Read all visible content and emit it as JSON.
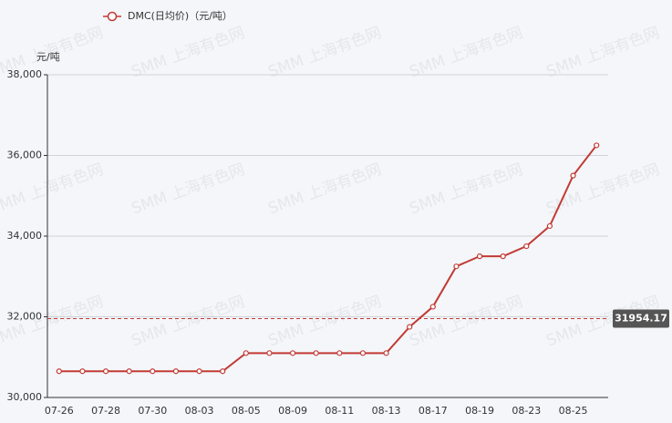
{
  "chart_data": {
    "type": "line",
    "legend_label": "DMC(日均价)（元/吨）",
    "y_axis_label": "元/吨",
    "watermark": "SMM 上海有色网",
    "categories": [
      "07-26",
      null,
      "07-28",
      null,
      "07-30",
      null,
      "08-03",
      null,
      "08-05",
      null,
      "08-09",
      null,
      "08-11",
      null,
      "08-13",
      null,
      "08-17",
      null,
      "08-19",
      null,
      "08-23",
      null,
      "08-25",
      null
    ],
    "series": [
      {
        "name": "DMC(日均价)（元/吨）",
        "color": "#c23a35",
        "values": [
          30650,
          30650,
          30650,
          30650,
          30650,
          30650,
          30650,
          30650,
          31100,
          31100,
          31100,
          31100,
          31100,
          31100,
          31100,
          31750,
          32250,
          33250,
          33500,
          33500,
          33750,
          34250,
          35500,
          36250
        ]
      }
    ],
    "mark_line": {
      "value": 31954.17
    },
    "ylim": [
      30000,
      38000
    ],
    "yticks": [
      {
        "value": 30000,
        "label": "30,000"
      },
      {
        "value": 32000,
        "label": "32,000"
      },
      {
        "value": 34000,
        "label": "34,000"
      },
      {
        "value": 36000,
        "label": "36,000"
      },
      {
        "value": 38000,
        "label": "38,000"
      }
    ],
    "grid": true
  }
}
